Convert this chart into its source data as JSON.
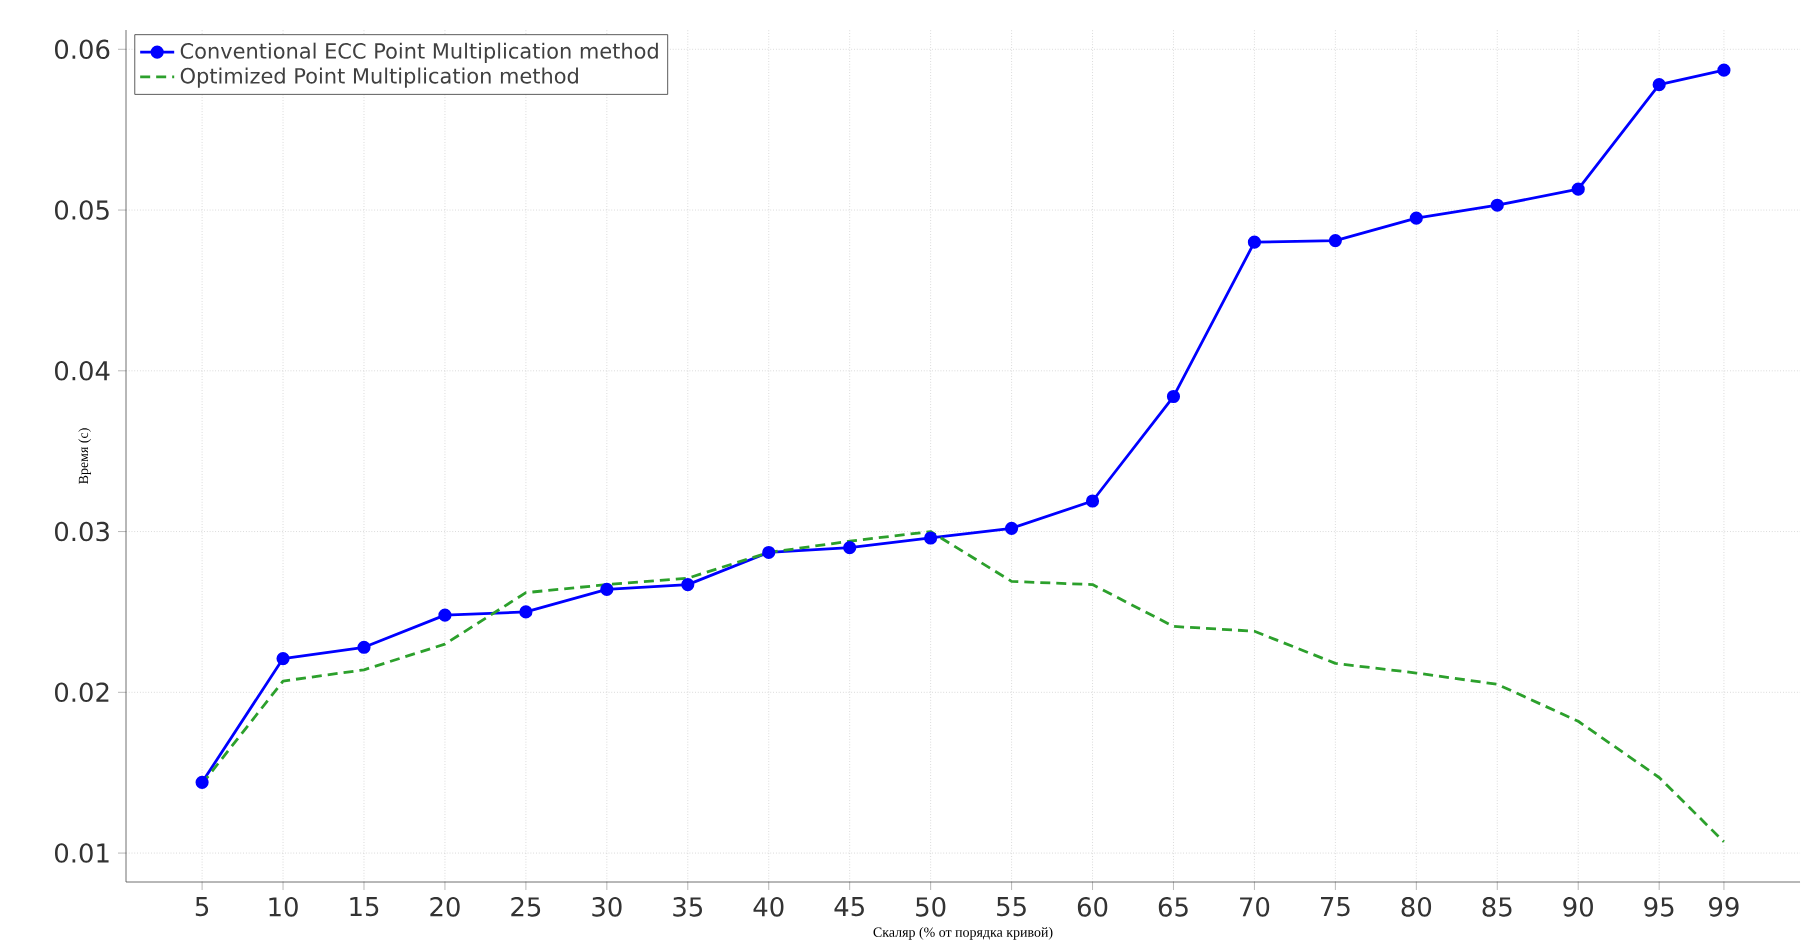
{
  "chart_data": {
    "type": "line",
    "xlabel": "Скаляр (% от порядка кривой)",
    "ylabel": "Время (с)",
    "x": [
      5,
      10,
      15,
      20,
      25,
      30,
      35,
      40,
      45,
      50,
      55,
      60,
      65,
      70,
      75,
      80,
      85,
      90,
      95,
      99
    ],
    "series": [
      {
        "name": "Conventional ECC Point Multiplication method",
        "color": "#0000ff",
        "marker": "circle",
        "line_style": "solid",
        "values": [
          0.0144,
          0.0221,
          0.0228,
          0.0248,
          0.025,
          0.0264,
          0.0267,
          0.0287,
          0.029,
          0.0296,
          0.0302,
          0.0319,
          0.0384,
          0.048,
          0.0481,
          0.0495,
          0.0503,
          0.0513,
          0.0578,
          0.0587
        ]
      },
      {
        "name": "Optimized Point Multiplication method",
        "color": "#2ca02c",
        "marker": "none",
        "line_style": "dashed",
        "values": [
          0.0143,
          0.0207,
          0.0214,
          0.023,
          0.0262,
          0.0267,
          0.0271,
          0.0287,
          0.0294,
          0.03,
          0.0269,
          0.0267,
          0.0241,
          0.0238,
          0.0218,
          0.0212,
          0.0205,
          0.0182,
          0.0147,
          0.0107
        ]
      }
    ],
    "xlim": [
      0.3,
      103.7
    ],
    "ylim": [
      0.0082,
      0.0612
    ],
    "xticks": [
      5,
      10,
      15,
      20,
      25,
      30,
      35,
      40,
      45,
      50,
      55,
      60,
      65,
      70,
      75,
      80,
      85,
      90,
      95,
      99
    ],
    "yticks": [
      0.01,
      0.02,
      0.03,
      0.04,
      0.05,
      0.06
    ],
    "grid": true,
    "legend": "top left"
  }
}
